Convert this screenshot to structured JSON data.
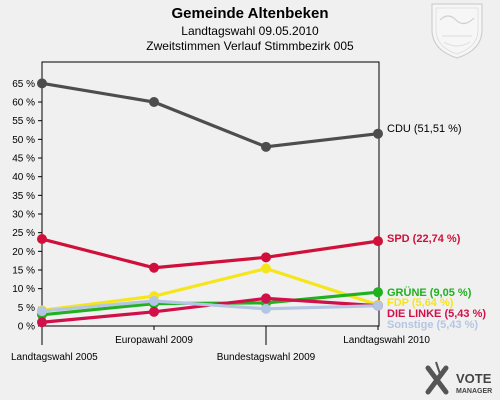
{
  "chart_data": {
    "type": "line",
    "title": "Gemeinde Altenbeken",
    "subtitle_lines": [
      "Landtagswahl 09.05.2010",
      "Zweitstimmen Verlauf Stimmbezirk  005"
    ],
    "categories": [
      "Landtagswahl 2005",
      "Europawahl 2009",
      "Bundestagswahl 2009",
      "Landtagswahl 2010"
    ],
    "yticks": [
      "0 %",
      "5 %",
      "10 %",
      "15 %",
      "20 %",
      "25 %",
      "30 %",
      "35 %",
      "40 %",
      "45 %",
      "50 %",
      "55 %",
      "60 %",
      "65 %"
    ],
    "ylim": [
      0,
      70
    ],
    "grid": false,
    "series": [
      {
        "name": "CDU",
        "label": "CDU (51,51 %)",
        "color": "#4d4d4d",
        "label_color": "#000000",
        "values": [
          65.0,
          60.0,
          48.0,
          51.51
        ]
      },
      {
        "name": "SPD",
        "label": "SPD (22,74 %)",
        "color": "#d0103a",
        "label_color": "#d0103a",
        "values": [
          23.3,
          15.6,
          18.4,
          22.74
        ]
      },
      {
        "name": "FDP",
        "label": "FDP (5,64 %)",
        "color": "#f5e51b",
        "label_color": "#f5e51b",
        "values": [
          4.2,
          8.0,
          15.4,
          5.64
        ]
      },
      {
        "name": "GRÜNE",
        "label": "GRÜNE (9,05 %)",
        "color": "#1fb11f",
        "label_color": "#1fb11f",
        "values": [
          3.0,
          6.0,
          6.2,
          9.05
        ]
      },
      {
        "name": "DIE LINKE",
        "label": "DIE LINKE (5,43 %)",
        "color": "#d0104a",
        "label_color": "#d0104a",
        "values": [
          1.0,
          3.8,
          7.4,
          5.43
        ]
      },
      {
        "name": "Sonstige",
        "label": "Sonstige (5,43 %)",
        "color": "#b4c6e4",
        "label_color": "#b4c6e4",
        "values": [
          4.0,
          6.7,
          4.6,
          5.43
        ]
      }
    ]
  },
  "logo": {
    "line1": "VOTE",
    "line2": "MANAGER"
  }
}
